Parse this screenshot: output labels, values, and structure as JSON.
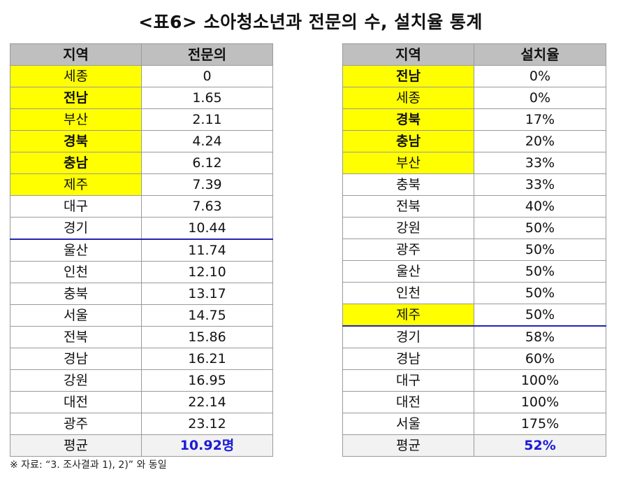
{
  "title": "<표6> 소아청소년과 전문의 수, 설치율 통계",
  "left_table": {
    "headers": [
      "지역",
      "전문의"
    ],
    "rows": [
      {
        "region": "세종",
        "value": "0",
        "highlight": true,
        "bold": false
      },
      {
        "region": "전남",
        "value": "1.65",
        "highlight": true,
        "bold": true
      },
      {
        "region": "부산",
        "value": "2.11",
        "highlight": true,
        "bold": false
      },
      {
        "region": "경북",
        "value": "4.24",
        "highlight": true,
        "bold": true
      },
      {
        "region": "충남",
        "value": "6.12",
        "highlight": true,
        "bold": true
      },
      {
        "region": "제주",
        "value": "7.39",
        "highlight": true,
        "bold": false
      },
      {
        "region": "대구",
        "value": "7.63",
        "highlight": false,
        "bold": false
      },
      {
        "region": "경기",
        "value": "10.44",
        "highlight": false,
        "bold": false
      },
      {
        "region": "울산",
        "value": "11.74",
        "highlight": false,
        "bold": false
      },
      {
        "region": "인천",
        "value": "12.10",
        "highlight": false,
        "bold": false
      },
      {
        "region": "충북",
        "value": "13.17",
        "highlight": false,
        "bold": false
      },
      {
        "region": "서울",
        "value": "14.75",
        "highlight": false,
        "bold": false
      },
      {
        "region": "전북",
        "value": "15.86",
        "highlight": false,
        "bold": false
      },
      {
        "region": "경남",
        "value": "16.21",
        "highlight": false,
        "bold": false
      },
      {
        "region": "강원",
        "value": "16.95",
        "highlight": false,
        "bold": false
      },
      {
        "region": "대전",
        "value": "22.14",
        "highlight": false,
        "bold": false
      },
      {
        "region": "광주",
        "value": "23.12",
        "highlight": false,
        "bold": false
      }
    ],
    "average": {
      "label": "평균",
      "value": "10.92명"
    }
  },
  "right_table": {
    "headers": [
      "지역",
      "설치율"
    ],
    "rows": [
      {
        "region": "전남",
        "value": "0%",
        "highlight": true,
        "bold": true
      },
      {
        "region": "세종",
        "value": "0%",
        "highlight": true,
        "bold": false
      },
      {
        "region": "경북",
        "value": "17%",
        "highlight": true,
        "bold": true
      },
      {
        "region": "충남",
        "value": "20%",
        "highlight": true,
        "bold": true
      },
      {
        "region": "부산",
        "value": "33%",
        "highlight": true,
        "bold": false
      },
      {
        "region": "충북",
        "value": "33%",
        "highlight": false,
        "bold": false
      },
      {
        "region": "전북",
        "value": "40%",
        "highlight": false,
        "bold": false
      },
      {
        "region": "강원",
        "value": "50%",
        "highlight": false,
        "bold": false
      },
      {
        "region": "광주",
        "value": "50%",
        "highlight": false,
        "bold": false
      },
      {
        "region": "울산",
        "value": "50%",
        "highlight": false,
        "bold": false
      },
      {
        "region": "인천",
        "value": "50%",
        "highlight": false,
        "bold": false
      },
      {
        "region": "제주",
        "value": "50%",
        "highlight": true,
        "bold": false
      },
      {
        "region": "경기",
        "value": "58%",
        "highlight": false,
        "bold": false
      },
      {
        "region": "경남",
        "value": "60%",
        "highlight": false,
        "bold": false
      },
      {
        "region": "대구",
        "value": "100%",
        "highlight": false,
        "bold": false
      },
      {
        "region": "대전",
        "value": "100%",
        "highlight": false,
        "bold": false
      },
      {
        "region": "서울",
        "value": "175%",
        "highlight": false,
        "bold": false
      }
    ],
    "average": {
      "label": "평균",
      "value": "52%"
    }
  },
  "note": "※ 자료: “3. 조사결과 1), 2)” 와 동일",
  "colors": {
    "highlight": "#ffff00",
    "header_bg": "#bfbfbf",
    "average_value": "#1a1ad8",
    "separator_line": "#2424b0"
  }
}
